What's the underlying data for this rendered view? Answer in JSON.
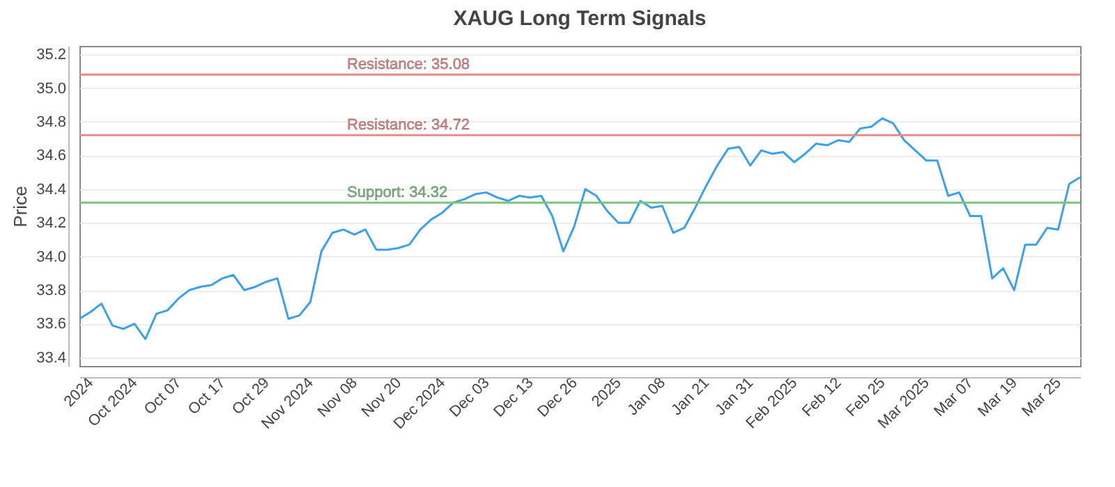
{
  "chart_data": {
    "type": "line",
    "title": "XAUG Long Term Signals",
    "ylabel": "Price",
    "categories": [
      null,
      "2024",
      null,
      null,
      null,
      "Oct 2024",
      null,
      null,
      null,
      "Oct 07",
      null,
      null,
      null,
      "Oct 17",
      null,
      null,
      null,
      "Oct 29",
      null,
      null,
      null,
      "Nov 2024",
      null,
      null,
      null,
      "Nov 08",
      null,
      null,
      null,
      "Nov 20",
      null,
      null,
      null,
      "Dec 2024",
      null,
      null,
      null,
      "Dec 03",
      null,
      null,
      null,
      "Dec 13",
      null,
      null,
      null,
      "Dec 26",
      null,
      null,
      null,
      "2025",
      null,
      null,
      null,
      "Jan 08",
      null,
      null,
      null,
      "Jan 21",
      null,
      null,
      null,
      "Jan 31",
      null,
      null,
      null,
      "Feb 2025",
      null,
      null,
      null,
      "Feb 12",
      null,
      null,
      null,
      "Feb 25",
      null,
      null,
      null,
      "Mar 2025",
      null,
      null,
      null,
      "Mar 07",
      null,
      null,
      null,
      "Mar 19",
      null,
      null,
      null,
      "Mar 25",
      null,
      null
    ],
    "series": [
      {
        "color": "#3ea0e8",
        "values": [
          33.63,
          33.67,
          33.72,
          33.59,
          33.57,
          33.6,
          33.51,
          33.66,
          33.68,
          33.75,
          33.8,
          33.82,
          33.83,
          33.87,
          33.89,
          33.8,
          33.82,
          33.85,
          33.87,
          33.63,
          33.65,
          33.73,
          34.03,
          34.14,
          34.16,
          34.13,
          34.16,
          34.04,
          34.04,
          34.05,
          34.07,
          34.16,
          34.22,
          34.26,
          34.32,
          34.34,
          34.37,
          34.38,
          34.35,
          34.33,
          34.36,
          34.35,
          34.36,
          34.24,
          34.03,
          34.18,
          34.4,
          34.36,
          34.27,
          34.2,
          34.2,
          34.33,
          34.29,
          34.3,
          34.14,
          34.17,
          34.29,
          34.42,
          34.54,
          34.64,
          34.65,
          34.54,
          34.63,
          34.61,
          34.62,
          34.56,
          34.61,
          34.67,
          34.66,
          34.69,
          34.68,
          34.76,
          34.77,
          34.82,
          34.79,
          34.69,
          34.63,
          34.57,
          34.57,
          34.36,
          34.38,
          34.24,
          34.24,
          33.87,
          33.93,
          33.8,
          34.07,
          34.07,
          34.17,
          34.16,
          34.43,
          34.47
        ]
      }
    ],
    "ylim": [
      33.35,
      35.25
    ],
    "yticks": [
      33.4,
      33.6,
      33.8,
      {
        "value": 34,
        "label": "34.0"
      },
      34.2,
      34.4,
      34.6,
      34.8,
      {
        "value": 35,
        "label": "35.0"
      },
      35.2
    ],
    "grid": "y",
    "legend": false,
    "marker": "none",
    "line_style": "solid",
    "ref_lines": [
      {
        "axis": "y",
        "value": 35.08,
        "label": "Resistance: 35.08",
        "color": "#e88a8a"
      },
      {
        "axis": "y",
        "value": 34.72,
        "label": "Resistance: 34.72",
        "color": "#e88a8a"
      },
      {
        "axis": "y",
        "value": 34.32,
        "label": "Support: 34.32",
        "color": "#7cc47c"
      }
    ]
  }
}
